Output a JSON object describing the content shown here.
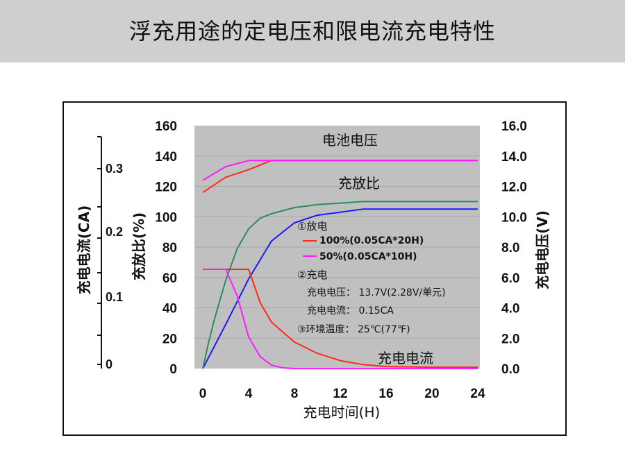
{
  "page": {
    "title": "浮充用途的定电压和限电流充电特性"
  },
  "chart_data": {
    "type": "line",
    "xlabel": "充电时间(H)",
    "ylabel_charge_ratio": "充放比(%)",
    "ylabel_current": "充电电流(CA)",
    "ylabel_voltage": "充电电压(V)",
    "x_ticks": [
      "0",
      "4",
      "8",
      "12",
      "16",
      "20",
      "24"
    ],
    "xlim": [
      0,
      24
    ],
    "y_ticks_ratio": [
      "160",
      "140",
      "120",
      "100",
      "80",
      "60",
      "40",
      "20",
      "0"
    ],
    "ylim_ratio": [
      0,
      160
    ],
    "y_ticks_voltage": [
      "16.0",
      "14.0",
      "12.0",
      "10.0",
      "8.0",
      "6.0",
      "4.0",
      "2.0",
      "0.0"
    ],
    "ylim_voltage": [
      0,
      16
    ],
    "y_ticks_current": [
      "0.3",
      "0.2",
      "0.1",
      "0"
    ],
    "ylim_current": [
      0,
      0.35
    ],
    "series_labels": {
      "voltage": "电池电压",
      "ratio": "充放比",
      "current": "充电电流"
    },
    "notes": [
      "①放电",
      "100%(0.05CA*20H)",
      "50%(0.05CA*10H)",
      "②充电",
      "充电电压： 13.7V(2.28V/单元)",
      "充电电流： 0.15CA",
      "③环境温度： 25℃(77℉)"
    ],
    "series": [
      {
        "group": "100%",
        "kind": "voltage",
        "color": "#ff2a1a",
        "x": [
          0,
          2,
          4,
          6,
          8,
          12,
          16,
          20,
          24
        ],
        "values": [
          11.6,
          12.6,
          13.1,
          13.7,
          13.7,
          13.7,
          13.7,
          13.7,
          13.7
        ]
      },
      {
        "group": "50%",
        "kind": "voltage",
        "color": "#ff1aff",
        "x": [
          0,
          2,
          4,
          6,
          8,
          12,
          16,
          20,
          24
        ],
        "values": [
          12.4,
          13.3,
          13.7,
          13.7,
          13.7,
          13.7,
          13.7,
          13.7,
          13.7
        ]
      },
      {
        "group": "100%",
        "kind": "ratio",
        "color": "#1a1aff",
        "x": [
          0,
          2,
          4,
          6,
          8,
          10,
          12,
          14,
          16,
          20,
          24
        ],
        "values": [
          0,
          29,
          59,
          84,
          96,
          101,
          103,
          105,
          105,
          105,
          105
        ]
      },
      {
        "group": "50%",
        "kind": "ratio",
        "color": "#2e8b57",
        "x": [
          0,
          0.5,
          1,
          2,
          3,
          4,
          5,
          6,
          8,
          10,
          14,
          16,
          20,
          24
        ],
        "values": [
          0,
          17,
          32,
          58,
          79,
          92,
          99,
          102,
          106,
          108,
          110,
          110,
          110,
          110
        ]
      },
      {
        "group": "100%",
        "kind": "current",
        "color": "#ff2a1a",
        "x": [
          0,
          2,
          4,
          5,
          6,
          8,
          10,
          12,
          14,
          16,
          20,
          24
        ],
        "values": [
          0.15,
          0.15,
          0.15,
          0.1,
          0.07,
          0.04,
          0.023,
          0.012,
          0.006,
          0.003,
          0.002,
          0.002
        ]
      },
      {
        "group": "50%",
        "kind": "current",
        "color": "#ff1aff",
        "x": [
          0,
          2,
          3,
          4,
          5,
          6,
          7,
          8,
          12,
          16,
          24
        ],
        "values": [
          0.15,
          0.15,
          0.11,
          0.048,
          0.018,
          0.005,
          0.001,
          0,
          0,
          0,
          0
        ]
      }
    ]
  }
}
